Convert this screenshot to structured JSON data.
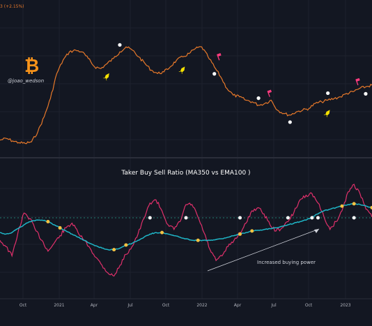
{
  "header": {
    "legend_fragment": "3 (+2.15%)",
    "watermark": "@joao_wedson"
  },
  "annotation": "Increased buying power",
  "colors": {
    "background": "#131722",
    "price": "#e8792a",
    "ratio": "#e0306b",
    "ema": "#1fb6c7",
    "dot": "#ffffff",
    "cross": "#f5c242",
    "rocket": "#f5e100",
    "flag": "#ff3b7f",
    "bitcoin": "#f7931a"
  },
  "chart_data": [
    {
      "type": "line",
      "series": [
        {
          "values": [
            12,
            14,
            11,
            9,
            8,
            10,
            22,
            40,
            62,
            92,
            108,
            118,
            120,
            118,
            110,
            100,
            98,
            104,
            110,
            118,
            124,
            120,
            112,
            104,
            96,
            92,
            94,
            100,
            108,
            112,
            116,
            122,
            124,
            112,
            100,
            88,
            74,
            66,
            64,
            60,
            58,
            54,
            56,
            60,
            48,
            44,
            42,
            46,
            48,
            50,
            56,
            58,
            60,
            62,
            64,
            68,
            70,
            74,
            76,
            78
          ]
        }
      ],
      "markers": {
        "white_dot_index": [
          19,
          34,
          41,
          46,
          52,
          58
        ],
        "rocket_index": [
          17,
          29,
          52
        ],
        "flag_index": [
          34,
          42,
          56
        ]
      },
      "grid": true
    },
    {
      "type": "line",
      "title": "Taker Buy Sell Ratio (MA350 vs EMA100 )",
      "x_ticks": [
        "Oct",
        "2021",
        "Apr",
        "Jul",
        "Oct",
        "2022",
        "Apr",
        "Jul",
        "Oct",
        "2023"
      ],
      "series": [
        {
          "values": [
            50,
            42,
            30,
            60,
            85,
            78,
            62,
            50,
            36,
            46,
            56,
            66,
            72,
            60,
            50,
            40,
            28,
            18,
            8,
            4,
            18,
            32,
            42,
            58,
            78,
            98,
            102,
            88,
            70,
            64,
            74,
            96,
            96,
            80,
            60,
            38,
            24,
            30,
            42,
            50,
            60,
            72,
            88,
            92,
            84,
            70,
            62,
            66,
            74,
            86,
            102,
            108,
            110,
            98,
            80,
            64,
            74,
            88,
            112,
            122,
            110,
            90,
            80
          ]
        },
        {
          "values": [
            60,
            58,
            60,
            65,
            70,
            74,
            76,
            76,
            74,
            70,
            66,
            62,
            58,
            54,
            50,
            46,
            43,
            40,
            38,
            38,
            40,
            44,
            46,
            50,
            54,
            58,
            60,
            60,
            58,
            56,
            54,
            52,
            50,
            50,
            50,
            50,
            51,
            52,
            54,
            56,
            58,
            60,
            62,
            63,
            64,
            65,
            66,
            68,
            70,
            72,
            74,
            76,
            80,
            84,
            88,
            90,
            92,
            94,
            96,
            97,
            96,
            94,
            92
          ]
        }
      ],
      "markers": {
        "white_dot_index": [
          25,
          31,
          40,
          48,
          52,
          53,
          59
        ],
        "cross_index": [
          8,
          10,
          19,
          21,
          27,
          33,
          40,
          42,
          57,
          59,
          62
        ]
      },
      "grid": true
    }
  ]
}
